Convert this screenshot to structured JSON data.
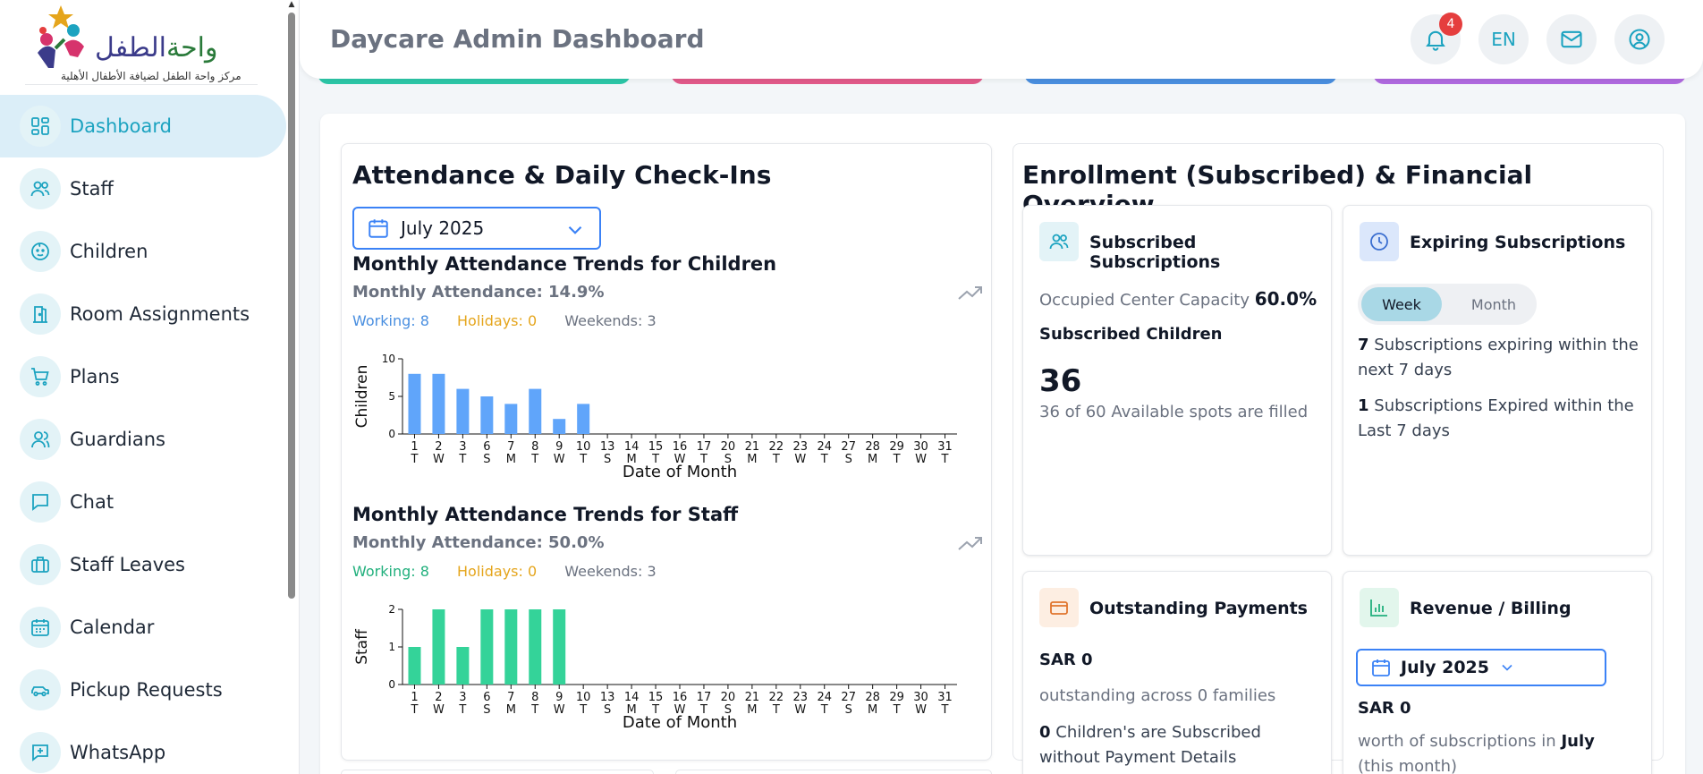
{
  "logo": {
    "title_part1": "واحة",
    "title_part2": "الطفل",
    "subtitle": "مركز واحة الطفل لضيافة الأطفال الأهلية"
  },
  "sidebar": {
    "items": [
      {
        "label": "Dashboard",
        "icon": "dashboard-icon",
        "active": true
      },
      {
        "label": "Staff",
        "icon": "staff-icon"
      },
      {
        "label": "Children",
        "icon": "children-icon"
      },
      {
        "label": "Room Assignments",
        "icon": "door-icon"
      },
      {
        "label": "Plans",
        "icon": "cart-icon"
      },
      {
        "label": "Guardians",
        "icon": "guardian-icon"
      },
      {
        "label": "Chat",
        "icon": "chat-icon"
      },
      {
        "label": "Staff Leaves",
        "icon": "briefcase-icon"
      },
      {
        "label": "Calendar",
        "icon": "calendar-icon"
      },
      {
        "label": "Pickup Requests",
        "icon": "car-icon"
      },
      {
        "label": "WhatsApp",
        "icon": "whatsapp-icon"
      }
    ]
  },
  "header": {
    "title": "Daycare Admin Dashboard",
    "notification_count": "4",
    "language": "EN"
  },
  "attendance": {
    "title": "Attendance & Daily Check-Ins",
    "month": "July 2025",
    "children_chart": {
      "title": "Monthly Attendance Trends for Children",
      "rate": "Monthly Attendance: 14.9%",
      "working": "Working: 8",
      "holidays": "Holidays: 0",
      "weekends": "Weekends: 3"
    },
    "staff_chart": {
      "title": "Monthly Attendance Trends for Staff",
      "rate": "Monthly Attendance: 50.0%",
      "working": "Working: 8",
      "holidays": "Holidays: 0",
      "weekends": "Weekends: 3"
    }
  },
  "chart_data": [
    {
      "type": "bar",
      "ylabel": "Children",
      "xlabel": "Date of Month",
      "ylim": [
        0,
        10
      ],
      "yticks": [
        "0",
        "5",
        "10"
      ],
      "categories": [
        "1",
        "2",
        "3",
        "6",
        "7",
        "8",
        "9",
        "10",
        "13",
        "14",
        "15",
        "16",
        "17",
        "20",
        "21",
        "22",
        "23",
        "24",
        "27",
        "28",
        "29",
        "30",
        "31"
      ],
      "weekdays": [
        "T",
        "W",
        "T",
        "S",
        "M",
        "T",
        "W",
        "T",
        "S",
        "M",
        "T",
        "W",
        "T",
        "S",
        "M",
        "T",
        "W",
        "T",
        "S",
        "M",
        "T",
        "W",
        "T"
      ],
      "values": [
        8,
        8,
        6,
        5,
        4,
        6,
        2,
        4,
        0,
        0,
        0,
        0,
        0,
        0,
        0,
        0,
        0,
        0,
        0,
        0,
        0,
        0,
        0
      ],
      "color": "#60a5fa"
    },
    {
      "type": "bar",
      "ylabel": "Staff",
      "xlabel": "Date of Month",
      "ylim": [
        0,
        2
      ],
      "yticks": [
        "0",
        "1",
        "2"
      ],
      "categories": [
        "1",
        "2",
        "3",
        "6",
        "7",
        "8",
        "9",
        "10",
        "13",
        "14",
        "15",
        "16",
        "17",
        "20",
        "21",
        "22",
        "23",
        "24",
        "27",
        "28",
        "29",
        "30",
        "31"
      ],
      "weekdays": [
        "T",
        "W",
        "T",
        "S",
        "M",
        "T",
        "W",
        "T",
        "S",
        "M",
        "T",
        "W",
        "T",
        "S",
        "M",
        "T",
        "W",
        "T",
        "S",
        "M",
        "T",
        "W",
        "T"
      ],
      "values": [
        1,
        2,
        1,
        2,
        2,
        2,
        2,
        0,
        0,
        0,
        0,
        0,
        0,
        0,
        0,
        0,
        0,
        0,
        0,
        0,
        0,
        0,
        0
      ],
      "color": "#34d399"
    }
  ],
  "enrollment": {
    "title": "Enrollment (Subscribed) & Financial Overview",
    "subscribed": {
      "title": "Subscribed Subscriptions",
      "capacity_label": "Occupied Center Capacity",
      "capacity_value": "60.0%",
      "children_label": "Subscribed Children",
      "children_count": "36",
      "spots_text": "36 of 60 Available spots are filled"
    },
    "expiring": {
      "title": "Expiring Subscriptions",
      "toggle_week": "Week",
      "toggle_month": "Month",
      "expiring_count": "7",
      "expiring_text": "Subscriptions expiring within the next 7 days",
      "expired_count": "1",
      "expired_text": "Subscriptions Expired within the Last 7 days"
    },
    "outstanding": {
      "title": "Outstanding Payments",
      "amount": "SAR 0",
      "families_text": "outstanding across 0 families",
      "no_payment_count": "0",
      "no_payment_text": "Children's are Subscribed without Payment Details"
    },
    "revenue": {
      "title": "Revenue / Billing",
      "month": "July 2025",
      "amount": "SAR 0",
      "worth_text": "worth of subscriptions in",
      "worth_month": "July",
      "this_month": "(this month)"
    }
  }
}
